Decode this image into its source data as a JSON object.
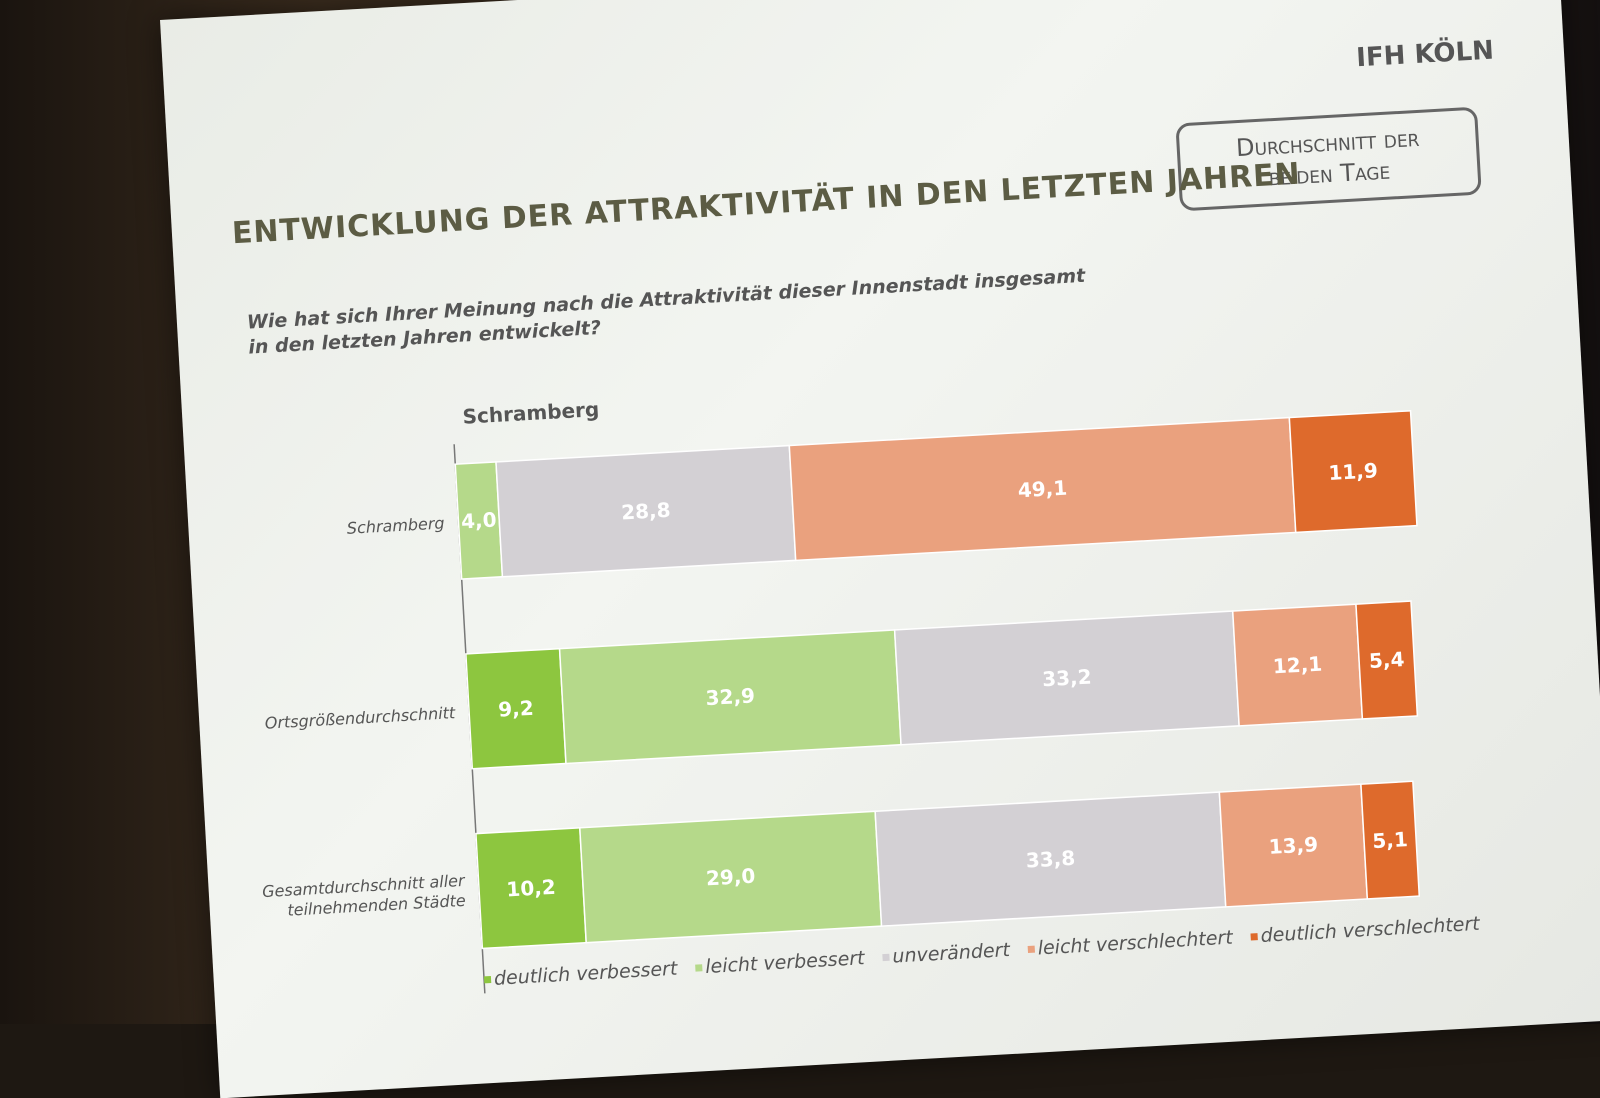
{
  "logo": "IFH KÖLN",
  "badge": "Durchschnitt der beiden Tage",
  "title": "ENTWICKLUNG DER ATTRAKTIVITÄT IN DEN LETZTEN JAHREN",
  "question": "Wie hat sich Ihrer Meinung nach die Attraktivität dieser Innenstadt insgesamt in den letzten Jahren entwickelt?",
  "chart_data": {
    "type": "bar",
    "orientation": "horizontal",
    "stacked": true,
    "title": "Schramberg",
    "categories": [
      "Schramberg",
      "Ortsgrößendurchschnitt",
      "Gesamtdurchschnitt aller teilnehmenden Städte"
    ],
    "series": [
      {
        "name": "deutlich verbessert",
        "color": "#8dc63f",
        "values": [
          null,
          9.2,
          10.2
        ]
      },
      {
        "name": "leicht verbessert",
        "color": "#b5d98a",
        "values": [
          4.0,
          32.9,
          29.0
        ]
      },
      {
        "name": "unverändert",
        "color": "#d3d0d4",
        "values": [
          28.8,
          33.2,
          33.8
        ]
      },
      {
        "name": "leicht verschlechtert",
        "color": "#eaa17e",
        "values": [
          49.1,
          12.1,
          13.9
        ]
      },
      {
        "name": "deutlich verschlechtert",
        "color": "#de6a2c",
        "values": [
          11.9,
          5.4,
          5.1
        ]
      }
    ],
    "data_labels": [
      [
        null,
        "4,0",
        "28,8",
        "49,1",
        "11,9"
      ],
      [
        "9,2",
        "32,9",
        "33,2",
        "12,1",
        "5,4"
      ],
      [
        "10,2",
        "29,0",
        "33,8",
        "13,9",
        "5,1"
      ]
    ],
    "legend": "bottom",
    "grid": false
  }
}
